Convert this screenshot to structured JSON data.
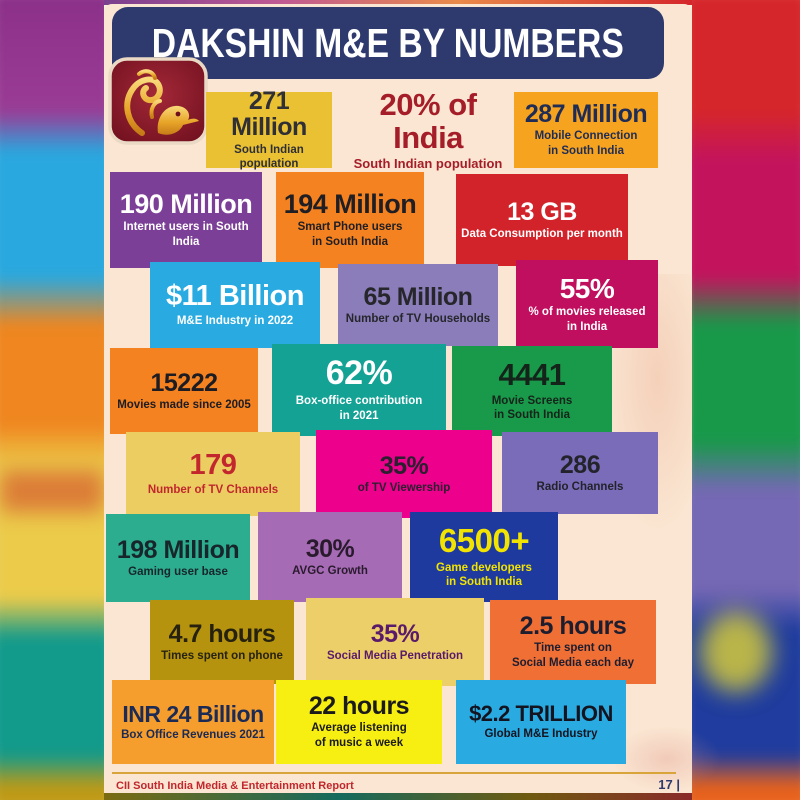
{
  "header": {
    "title": "DAKSHIN M&E BY NUMBERS"
  },
  "footer": {
    "report_title": "CII South India Media & Entertainment Report",
    "page_number": "17 |"
  },
  "colors": {
    "page_bg": "#fae6d2",
    "header_bg": "#2e3a6e",
    "title_fg": "#ffffff",
    "footer_rule": "#d9a43a",
    "footer_report_fg": "#c1272d",
    "footer_page_fg": "#2e3a6e",
    "logo_bg": "#7e1622",
    "logo_motif": "#e8a62a",
    "bg_bands_left": [
      "#9a3c95",
      "#29a8df",
      "#ef861f",
      "#eccb4a",
      "#129a8b",
      "#bf9a16"
    ],
    "bg_bands_right": [
      "#d5262b",
      "#c3135d",
      "#18994a",
      "#7568b4",
      "#1f3c9e",
      "#e8621c"
    ]
  },
  "stats": [
    {
      "id": "population",
      "value": "271 Million",
      "label": "South Indian population",
      "bg": "#e9c133",
      "fg": "#2f2f35"
    },
    {
      "id": "india-share",
      "value": "20% of India",
      "label": "South Indian population",
      "bg": "transparent",
      "fg": "#a51d28"
    },
    {
      "id": "mobile",
      "value": "287 Million",
      "label": "Mobile Connection\nin South India",
      "bg": "#f6a31f",
      "fg": "#1f2c55"
    },
    {
      "id": "internet",
      "value": "190 Million",
      "label": "Internet users in South India",
      "bg": "#7c3f97",
      "fg": "#ffffff"
    },
    {
      "id": "smartphone",
      "value": "194 Million",
      "label": "Smart Phone users\nin South India",
      "bg": "#f58220",
      "fg": "#1e1e24"
    },
    {
      "id": "data-consumption",
      "value": "13 GB",
      "label": "Data Consumption per month",
      "bg": "#d2232a",
      "fg": "#ffffff"
    },
    {
      "id": "me-industry",
      "value": "$11 Billion",
      "label": "M&E Industry in 2022",
      "bg": "#29abe2",
      "fg": "#ffffff"
    },
    {
      "id": "tv-households",
      "value": "65 Million",
      "label": "Number of TV Households",
      "bg": "#8b7db9",
      "fg": "#26262c"
    },
    {
      "id": "movies-share",
      "value": "55%",
      "label": "% of movies released\nin India",
      "bg": "#c00f5e",
      "fg": "#ffffff"
    },
    {
      "id": "movies-made",
      "value": "15222",
      "label": "Movies made since 2005",
      "bg": "#f58220",
      "fg": "#1c1c22"
    },
    {
      "id": "box-office-share",
      "value": "62%",
      "label": "Box-office contribution\nin 2021",
      "bg": "#14a295",
      "fg": "#ffffff"
    },
    {
      "id": "movie-screens",
      "value": "4441",
      "label": "Movie Screens\nin South India",
      "bg": "#189a4a",
      "fg": "#15241a"
    },
    {
      "id": "tv-channels",
      "value": "179",
      "label": "Number of TV Channels",
      "bg": "#eccd62",
      "fg": "#c1272d"
    },
    {
      "id": "tv-viewership",
      "value": "35%",
      "label": "of TV Viewership",
      "bg": "#ec008c",
      "fg": "#2a2030"
    },
    {
      "id": "radio-channels",
      "value": "286",
      "label": "Radio Channels",
      "bg": "#7a6cb8",
      "fg": "#23232b"
    },
    {
      "id": "gaming-users",
      "value": "198 Million",
      "label": "Gaming user base",
      "bg": "#2dad8f",
      "fg": "#17262a"
    },
    {
      "id": "avgc-growth",
      "value": "30%",
      "label": "AVGC Growth",
      "bg": "#a66bb5",
      "fg": "#2a1a2e"
    },
    {
      "id": "game-developers",
      "value": "6500+",
      "label": "Game developers\nin South India",
      "bg": "#1e3a9e",
      "fg": "#f2e400"
    },
    {
      "id": "phone-time",
      "value": "4.7 hours",
      "label": "Times spent on phone",
      "bg": "#b6930f",
      "fg": "#26220f"
    },
    {
      "id": "social-penetration",
      "value": "35%",
      "label": "Social Media Penetration",
      "bg": "#eccf68",
      "fg": "#5a1a6a"
    },
    {
      "id": "social-time",
      "value": "2.5 hours",
      "label": "Time spent on\nSocial Media each day",
      "bg": "#ef6f35",
      "fg": "#1d1d30"
    },
    {
      "id": "box-office-revenue",
      "value": "INR 24 Billion",
      "label": "Box Office Revenues 2021",
      "bg": "#f59d2d",
      "fg": "#1c2b55"
    },
    {
      "id": "music-listening",
      "value": "22 hours",
      "label": "Average listening\nof music a week",
      "bg": "#f7ee12",
      "fg": "#1b1b1b"
    },
    {
      "id": "global-industry",
      "value": "$2.2 TRILLION",
      "label": "Global M&E Industry",
      "bg": "#29abe2",
      "fg": "#141420"
    }
  ]
}
